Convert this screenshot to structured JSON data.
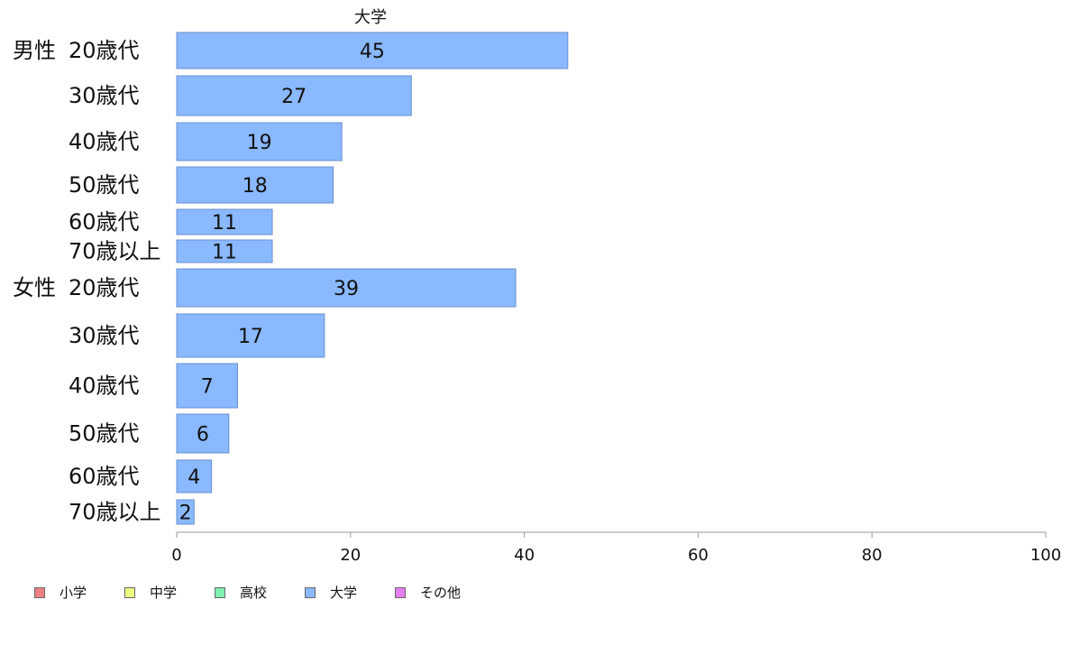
{
  "chart_data": {
    "type": "bar",
    "orientation": "horizontal",
    "title": "大学",
    "groups": [
      {
        "label": "男性",
        "categories": [
          "20歳代",
          "30歳代",
          "40歳代",
          "50歳代",
          "60歳代",
          "70歳以上"
        ],
        "values": [
          45,
          27,
          19,
          18,
          11,
          11
        ]
      },
      {
        "label": "女性",
        "categories": [
          "20歳代",
          "30歳代",
          "40歳代",
          "50歳代",
          "60歳代",
          "70歳以上"
        ],
        "values": [
          39,
          17,
          7,
          6,
          4,
          2
        ]
      }
    ],
    "xlim": [
      0,
      100
    ],
    "xticks": [
      0,
      20,
      40,
      60,
      80,
      100
    ],
    "bar_color": "#8ab9ff",
    "bar_edge_color": "#6a8fcf",
    "grid": false,
    "legend_position": "bottom-left"
  },
  "legend": [
    {
      "label": "小学",
      "color": "#f08080"
    },
    {
      "label": "中学",
      "color": "#eeff80"
    },
    {
      "label": "高校",
      "color": "#80f0b0"
    },
    {
      "label": "大学",
      "color": "#8ab9ff"
    },
    {
      "label": "その他",
      "color": "#e57ef0"
    }
  ]
}
